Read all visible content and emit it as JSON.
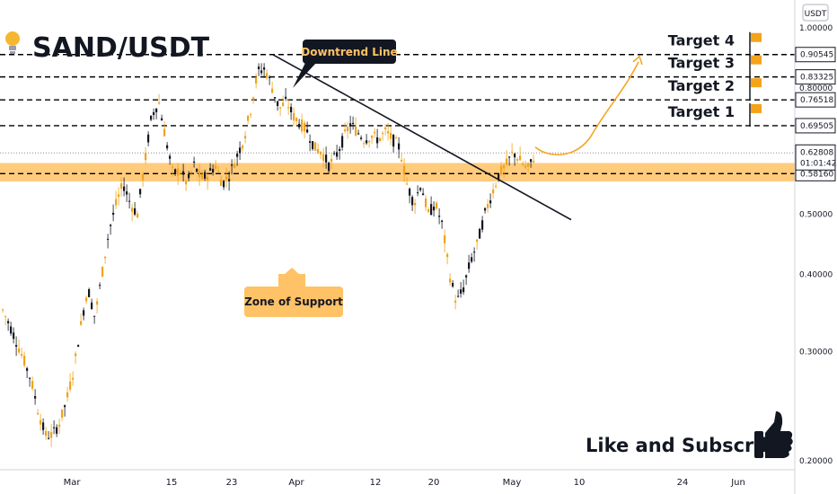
{
  "chart_data": {
    "type": "candlestick",
    "title": "SAND/USDT",
    "currency_label": "USDT",
    "y_scale": "log",
    "ylim": [
      0.195,
      1.0
    ],
    "y_ticks": [
      "1.00000",
      "0.80000",
      "0.50000",
      "0.40000",
      "0.30000",
      "0.20000"
    ],
    "x_ticks": [
      "Mar",
      "15",
      "23",
      "Apr",
      "12",
      "20",
      "May",
      "10",
      "24",
      "Jun"
    ],
    "price_levels": [
      {
        "value": "0.90545",
        "label": "Target 4"
      },
      {
        "value": "0.83325",
        "label": "Target 3"
      },
      {
        "value": "0.76518",
        "label": "Target 2"
      },
      {
        "value": "0.69505",
        "label": "Target 1"
      },
      {
        "value": "0.58160",
        "label": ""
      }
    ],
    "current_price": {
      "value": "0.62808",
      "countdown": "01:01:42",
      "color": "#131722"
    },
    "support_zone": {
      "from": 0.565,
      "to": 0.605,
      "label": "Zone of Support",
      "color": "#ffc266"
    },
    "annotations": {
      "downtrend_label": "Downtrend Line",
      "like_subscribe": "Like and Subscribe"
    },
    "trendline": {
      "from": [
        0.905,
        "Mar 26"
      ],
      "to": [
        0.49,
        "May 10"
      ]
    },
    "projection": {
      "start": 0.625,
      "end": 0.905,
      "color": "#f5a623"
    },
    "price_path": [
      0.35,
      0.33,
      0.31,
      0.29,
      0.27,
      0.24,
      0.22,
      0.22,
      0.23,
      0.25,
      0.28,
      0.33,
      0.38,
      0.34,
      0.4,
      0.47,
      0.52,
      0.56,
      0.52,
      0.5,
      0.6,
      0.72,
      0.76,
      0.66,
      0.58,
      0.59,
      0.56,
      0.6,
      0.57,
      0.58,
      0.6,
      0.56,
      0.58,
      0.62,
      0.66,
      0.74,
      0.85,
      0.86,
      0.8,
      0.74,
      0.76,
      0.72,
      0.7,
      0.68,
      0.64,
      0.63,
      0.6,
      0.62,
      0.66,
      0.7,
      0.68,
      0.66,
      0.67,
      0.66,
      0.68,
      0.66,
      0.64,
      0.56,
      0.52,
      0.56,
      0.5,
      0.52,
      0.48,
      0.4,
      0.36,
      0.38,
      0.42,
      0.45,
      0.5,
      0.54,
      0.58,
      0.6,
      0.63,
      0.61,
      0.59,
      0.62
    ],
    "colors": {
      "up": "#f0a31a",
      "down": "#131722",
      "grid": "#000000",
      "label_box": "#131722"
    }
  }
}
